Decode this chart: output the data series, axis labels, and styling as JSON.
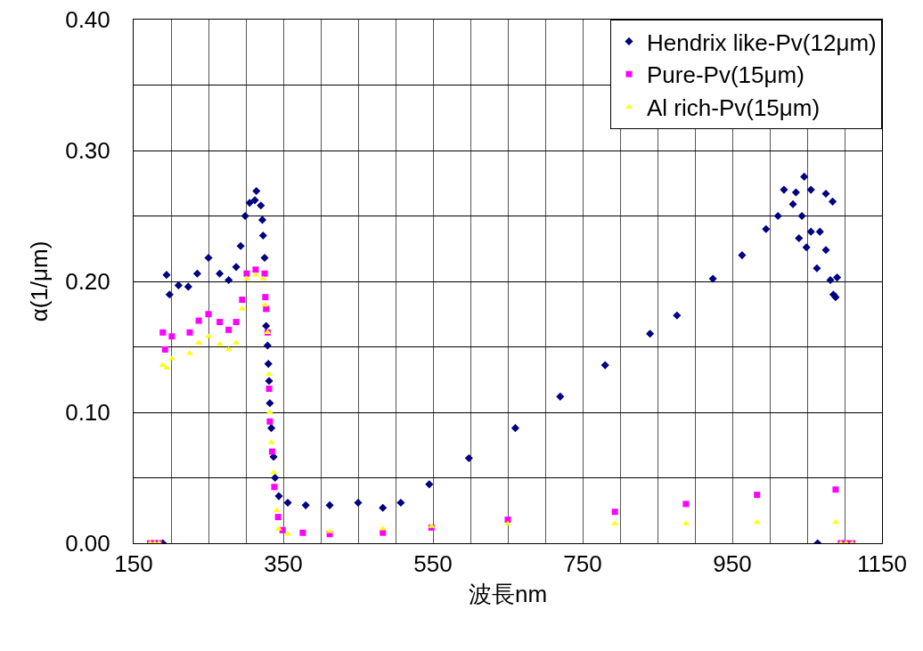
{
  "chart_data": {
    "type": "scatter",
    "xlabel": "波長nm",
    "ylabel": "α(1/μm)",
    "xlim": [
      150,
      1150
    ],
    "xticks": [
      150,
      {
        "value": 200,
        "label": null
      },
      {
        "value": 250,
        "label": null
      },
      {
        "value": 300,
        "label": null
      },
      350,
      {
        "value": 400,
        "label": null
      },
      {
        "value": 450,
        "label": null
      },
      {
        "value": 500,
        "label": null
      },
      550,
      {
        "value": 600,
        "label": null
      },
      {
        "value": 650,
        "label": null
      },
      {
        "value": 700,
        "label": null
      },
      750,
      {
        "value": 800,
        "label": null
      },
      {
        "value": 850,
        "label": null
      },
      {
        "value": 900,
        "label": null
      },
      950,
      {
        "value": 1000,
        "label": null
      },
      {
        "value": 1050,
        "label": null
      },
      {
        "value": 1100,
        "label": null
      },
      1150
    ],
    "ylim": [
      0,
      0.4
    ],
    "yticks": [
      {
        "value": 0,
        "label": "0.00"
      },
      {
        "value": 0.05,
        "label": null
      },
      {
        "value": 0.1,
        "label": "0.10"
      },
      {
        "value": 0.15,
        "label": null
      },
      {
        "value": 0.2,
        "label": "0.20"
      },
      {
        "value": 0.25,
        "label": null
      },
      {
        "value": 0.3,
        "label": "0.30"
      },
      {
        "value": 0.35,
        "label": null
      },
      {
        "value": 0.4,
        "label": "0.40"
      }
    ],
    "grid": true,
    "legend": "top right",
    "series": [
      {
        "name": "Hendrix like-Pv(12μm)",
        "color": "#000080",
        "marker": "diamond",
        "x": [
          189,
          194,
          198,
          210,
          223,
          235,
          250,
          265,
          277,
          287,
          293,
          299,
          305,
          312,
          314,
          320,
          322,
          323,
          325,
          327,
          329,
          330,
          331,
          332,
          334,
          337,
          339,
          344,
          356,
          380,
          412,
          450,
          483,
          507,
          545,
          598,
          660,
          720,
          780,
          840,
          876,
          924,
          963,
          995,
          1011,
          1019,
          1031,
          1035,
          1039,
          1043,
          1046,
          1049,
          1055,
          1055,
          1063,
          1064,
          1067,
          1075,
          1075,
          1081,
          1084,
          1085,
          1088,
          1090
        ],
        "values": [
          0,
          0.205,
          0.19,
          0.197,
          0.196,
          0.206,
          0.218,
          0.206,
          0.201,
          0.211,
          0.227,
          0.25,
          0.26,
          0.262,
          0.269,
          0.258,
          0.247,
          0.235,
          0.218,
          0.166,
          0.151,
          0.137,
          0.124,
          0.107,
          0.088,
          0.066,
          0.05,
          0.036,
          0.031,
          0.029,
          0.029,
          0.031,
          0.027,
          0.031,
          0.045,
          0.065,
          0.088,
          0.112,
          0.136,
          0.16,
          0.174,
          0.202,
          0.22,
          0.24,
          0.25,
          0.27,
          0.259,
          0.268,
          0.233,
          0.25,
          0.28,
          0.226,
          0.27,
          0.238,
          0.21,
          0,
          0.238,
          0.267,
          0.224,
          0.201,
          0.261,
          0.19,
          0.188,
          0.203
        ]
      },
      {
        "name": "Pure-Pv(15μm)",
        "color": "#ff00ff",
        "marker": "square",
        "x": [
          172,
          178,
          184,
          189,
          192,
          201,
          225,
          237,
          250,
          265,
          277,
          287,
          295,
          301,
          313,
          325,
          326,
          327,
          329,
          331,
          332,
          335,
          338,
          343,
          349,
          376,
          412,
          483,
          548,
          650,
          793,
          888,
          983,
          1088,
          1095,
          1102,
          1110
        ],
        "values": [
          0,
          0,
          0,
          0.161,
          0.148,
          0.158,
          0.161,
          0.17,
          0.175,
          0.169,
          0.163,
          0.169,
          0.186,
          0.206,
          0.209,
          0.206,
          0.188,
          0.179,
          0.161,
          0.118,
          0.093,
          0.07,
          0.043,
          0.02,
          0.01,
          0.008,
          0.007,
          0.008,
          0.012,
          0.018,
          0.024,
          0.03,
          0.037,
          0.041,
          0,
          0,
          0
        ]
      },
      {
        "name": "Al rich-Pv(15μm)",
        "color": "#ffff00",
        "marker": "triangle",
        "x": [
          172,
          178,
          184,
          189,
          194,
          201,
          225,
          237,
          250,
          265,
          277,
          287,
          295,
          301,
          313,
          323,
          325,
          329,
          331,
          332,
          334,
          337,
          341,
          344,
          356,
          412,
          483,
          548,
          650,
          793,
          888,
          983,
          1088,
          1095,
          1102,
          1110
        ],
        "values": [
          0,
          0,
          0,
          0.136,
          0.134,
          0.141,
          0.145,
          0.153,
          0.158,
          0.152,
          0.148,
          0.153,
          0.179,
          0.202,
          0.205,
          0.202,
          0.182,
          0.161,
          0.129,
          0.1,
          0.077,
          0.054,
          0.025,
          0.011,
          0.007,
          0.009,
          0.011,
          0.013,
          0.015,
          0.015,
          0.015,
          0.016,
          0.016,
          0,
          0,
          0
        ]
      }
    ]
  }
}
